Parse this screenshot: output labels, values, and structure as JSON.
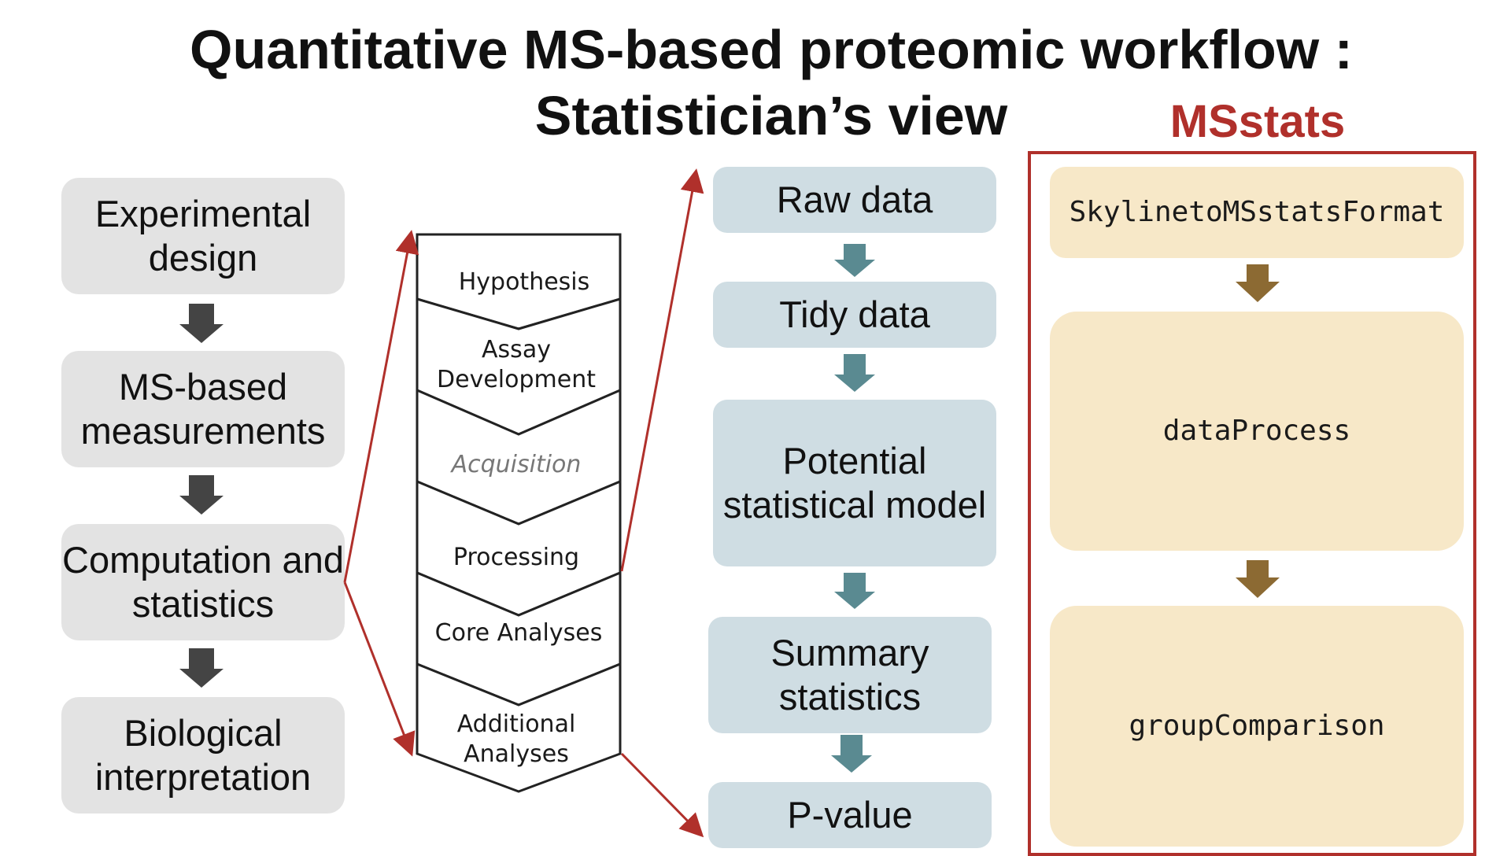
{
  "title": {
    "line1": "Quantitative MS-based proteomic workflow :",
    "line2": "Statistician’s view"
  },
  "msstats_label": "MSstats",
  "left_column": [
    {
      "label": "Experimental design"
    },
    {
      "label": "MS-based measurements"
    },
    {
      "label": "Computation and statistics"
    },
    {
      "label": "Biological interpretation"
    }
  ],
  "chevron_steps": [
    {
      "label": "Hypothesis",
      "italic": false
    },
    {
      "label": "Assay Development",
      "italic": false
    },
    {
      "label": "Acquisition",
      "italic": true
    },
    {
      "label": "Processing",
      "italic": false
    },
    {
      "label": "Core Analyses",
      "italic": false
    },
    {
      "label": "Additional Analyses",
      "italic": false
    }
  ],
  "middle_column": [
    {
      "label": "Raw data"
    },
    {
      "label": "Tidy data"
    },
    {
      "label": "Potential statistical model"
    },
    {
      "label": "Summary statistics"
    },
    {
      "label": "P-value"
    }
  ],
  "msstats_functions": [
    {
      "label": "SkylinetoMSstatsFormat"
    },
    {
      "label": "dataProcess"
    },
    {
      "label": "groupComparison"
    }
  ],
  "colors": {
    "left_box": "#e3e3e3",
    "left_arrow": "#444444",
    "middle_box": "#cfdde3",
    "middle_arrow": "#5a8a91",
    "right_box": "#f7e8c8",
    "right_arrow": "#8c6a33",
    "accent_red": "#b0302b"
  }
}
